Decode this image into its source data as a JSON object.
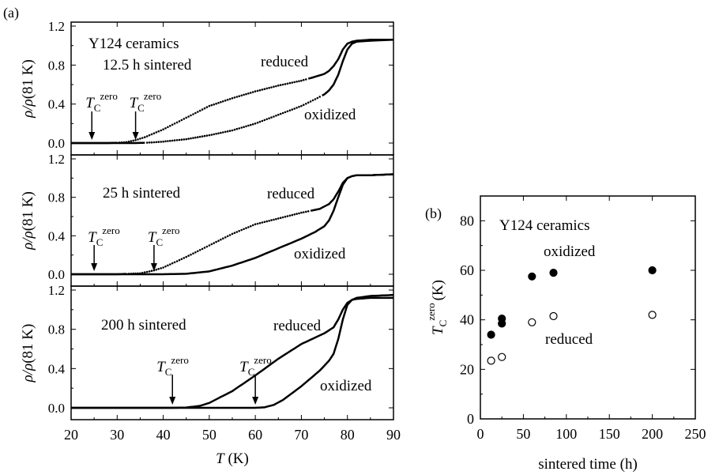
{
  "chart_data": [
    {
      "type": "line",
      "panel_label": "(a)",
      "subplot": "top",
      "xlim": [
        20,
        90
      ],
      "ylim": [
        0.0,
        1.2
      ],
      "yticks": [
        "0.0",
        "0.4",
        "0.8",
        "1.2"
      ],
      "ylabel": "ρ/ρ(81 K)",
      "annotations": [
        "Y124 ceramics",
        "12.5 h sintered",
        "reduced",
        "oxidized"
      ],
      "tc_label_main": "T",
      "tc_label_sub": "C",
      "tc_label_sup": "zero",
      "tc_arrows_x": [
        24.5,
        34
      ],
      "series": [
        {
          "name": "reduced",
          "x": [
            20,
            28,
            30,
            32,
            34,
            36,
            40,
            45,
            50,
            55,
            60,
            65,
            70,
            73,
            75,
            76,
            77,
            78,
            79,
            80,
            81,
            82,
            85,
            90
          ],
          "y": [
            0,
            0,
            0.003,
            0.01,
            0.03,
            0.06,
            0.14,
            0.26,
            0.38,
            0.46,
            0.53,
            0.59,
            0.64,
            0.68,
            0.71,
            0.74,
            0.79,
            0.86,
            0.96,
            1.02,
            1.04,
            1.05,
            1.06,
            1.06
          ]
        },
        {
          "name": "oxidized",
          "x": [
            20,
            30,
            34,
            36,
            38,
            40,
            45,
            50,
            55,
            60,
            65,
            70,
            73,
            75,
            76,
            77,
            78,
            79,
            80,
            81,
            82,
            85,
            90
          ],
          "y": [
            0,
            0,
            0,
            0.003,
            0.008,
            0.015,
            0.04,
            0.08,
            0.13,
            0.2,
            0.29,
            0.38,
            0.45,
            0.5,
            0.54,
            0.6,
            0.7,
            0.84,
            0.96,
            1.02,
            1.04,
            1.05,
            1.06
          ]
        }
      ]
    },
    {
      "type": "line",
      "subplot": "middle",
      "xlim": [
        20,
        90
      ],
      "ylim": [
        0.0,
        1.2
      ],
      "yticks": [
        "0.0",
        "0.4",
        "0.8",
        "1.2"
      ],
      "ylabel": "ρ/ρ(81 K)",
      "annotations": [
        "25 h sintered",
        "reduced",
        "oxidized"
      ],
      "tc_label_main": "T",
      "tc_label_sub": "C",
      "tc_label_sup": "zero",
      "tc_arrows_x": [
        25,
        38
      ],
      "series": [
        {
          "name": "reduced",
          "x": [
            20,
            30,
            35,
            38,
            40,
            45,
            50,
            55,
            60,
            65,
            70,
            74,
            76,
            77,
            78,
            79,
            80,
            81,
            82,
            85,
            90
          ],
          "y": [
            0,
            0,
            0.01,
            0.04,
            0.07,
            0.18,
            0.3,
            0.42,
            0.52,
            0.58,
            0.64,
            0.68,
            0.73,
            0.78,
            0.86,
            0.95,
            1.0,
            1.02,
            1.03,
            1.03,
            1.04
          ]
        },
        {
          "name": "oxidized",
          "x": [
            20,
            40,
            45,
            50,
            55,
            60,
            65,
            70,
            73,
            75,
            76,
            77,
            78,
            79,
            80,
            81,
            82,
            85,
            90
          ],
          "y": [
            0,
            0,
            0.005,
            0.03,
            0.09,
            0.17,
            0.27,
            0.37,
            0.44,
            0.5,
            0.56,
            0.66,
            0.8,
            0.93,
            1.0,
            1.02,
            1.03,
            1.03,
            1.04
          ]
        }
      ]
    },
    {
      "type": "line",
      "subplot": "bottom",
      "xlim": [
        20,
        90
      ],
      "ylim": [
        0.0,
        1.2
      ],
      "yticks": [
        "0.0",
        "0.4",
        "0.8",
        "1.2"
      ],
      "xticks": [
        "20",
        "30",
        "40",
        "50",
        "60",
        "70",
        "80",
        "90"
      ],
      "xlabel": "T (K)",
      "xlabel_main": "T",
      "xlabel_unit": "(K)",
      "ylabel": "ρ/ρ(81 K)",
      "annotations": [
        "200 h sintered",
        "reduced",
        "oxidized"
      ],
      "tc_label_main": "T",
      "tc_label_sub": "C",
      "tc_label_sup": "zero",
      "tc_arrows_x": [
        42,
        60
      ],
      "series": [
        {
          "name": "reduced",
          "x": [
            20,
            42,
            45,
            48,
            50,
            55,
            60,
            65,
            70,
            75,
            77,
            78,
            79,
            80,
            81,
            82,
            85,
            90
          ],
          "y": [
            0,
            0,
            0.003,
            0.02,
            0.05,
            0.17,
            0.33,
            0.5,
            0.65,
            0.76,
            0.82,
            0.9,
            1.0,
            1.07,
            1.1,
            1.11,
            1.12,
            1.12
          ]
        },
        {
          "name": "oxidized",
          "x": [
            20,
            60,
            62,
            64,
            66,
            68,
            70,
            72,
            74,
            76,
            77,
            78,
            79,
            80,
            81,
            82,
            85,
            90
          ],
          "y": [
            0,
            0,
            0.005,
            0.03,
            0.08,
            0.15,
            0.22,
            0.3,
            0.38,
            0.48,
            0.55,
            0.7,
            0.9,
            1.05,
            1.1,
            1.12,
            1.14,
            1.15
          ]
        }
      ]
    },
    {
      "type": "scatter",
      "panel_label": "(b)",
      "xlim": [
        0,
        250
      ],
      "ylim": [
        0,
        90
      ],
      "xticks": [
        "0",
        "50",
        "100",
        "150",
        "200",
        "250"
      ],
      "yticks": [
        "0",
        "20",
        "40",
        "60",
        "80"
      ],
      "xlabel": "sintered time (h)",
      "ylabel": "T_C^zero (K)",
      "ylabel_main": "T",
      "ylabel_sub": "C",
      "ylabel_sup": "zero",
      "ylabel_unit": "(K)",
      "annotations": [
        "Y124 ceramics",
        "oxidized",
        "reduced"
      ],
      "series": [
        {
          "name": "oxidized",
          "marker": "filled-circle",
          "x": [
            12.5,
            25,
            25,
            60,
            85,
            200
          ],
          "y": [
            34,
            38.5,
            40.5,
            57.5,
            59,
            60
          ]
        },
        {
          "name": "reduced",
          "marker": "open-circle",
          "x": [
            12.5,
            25,
            60,
            85,
            200
          ],
          "y": [
            23.5,
            25,
            39,
            41.5,
            42
          ]
        }
      ]
    }
  ]
}
